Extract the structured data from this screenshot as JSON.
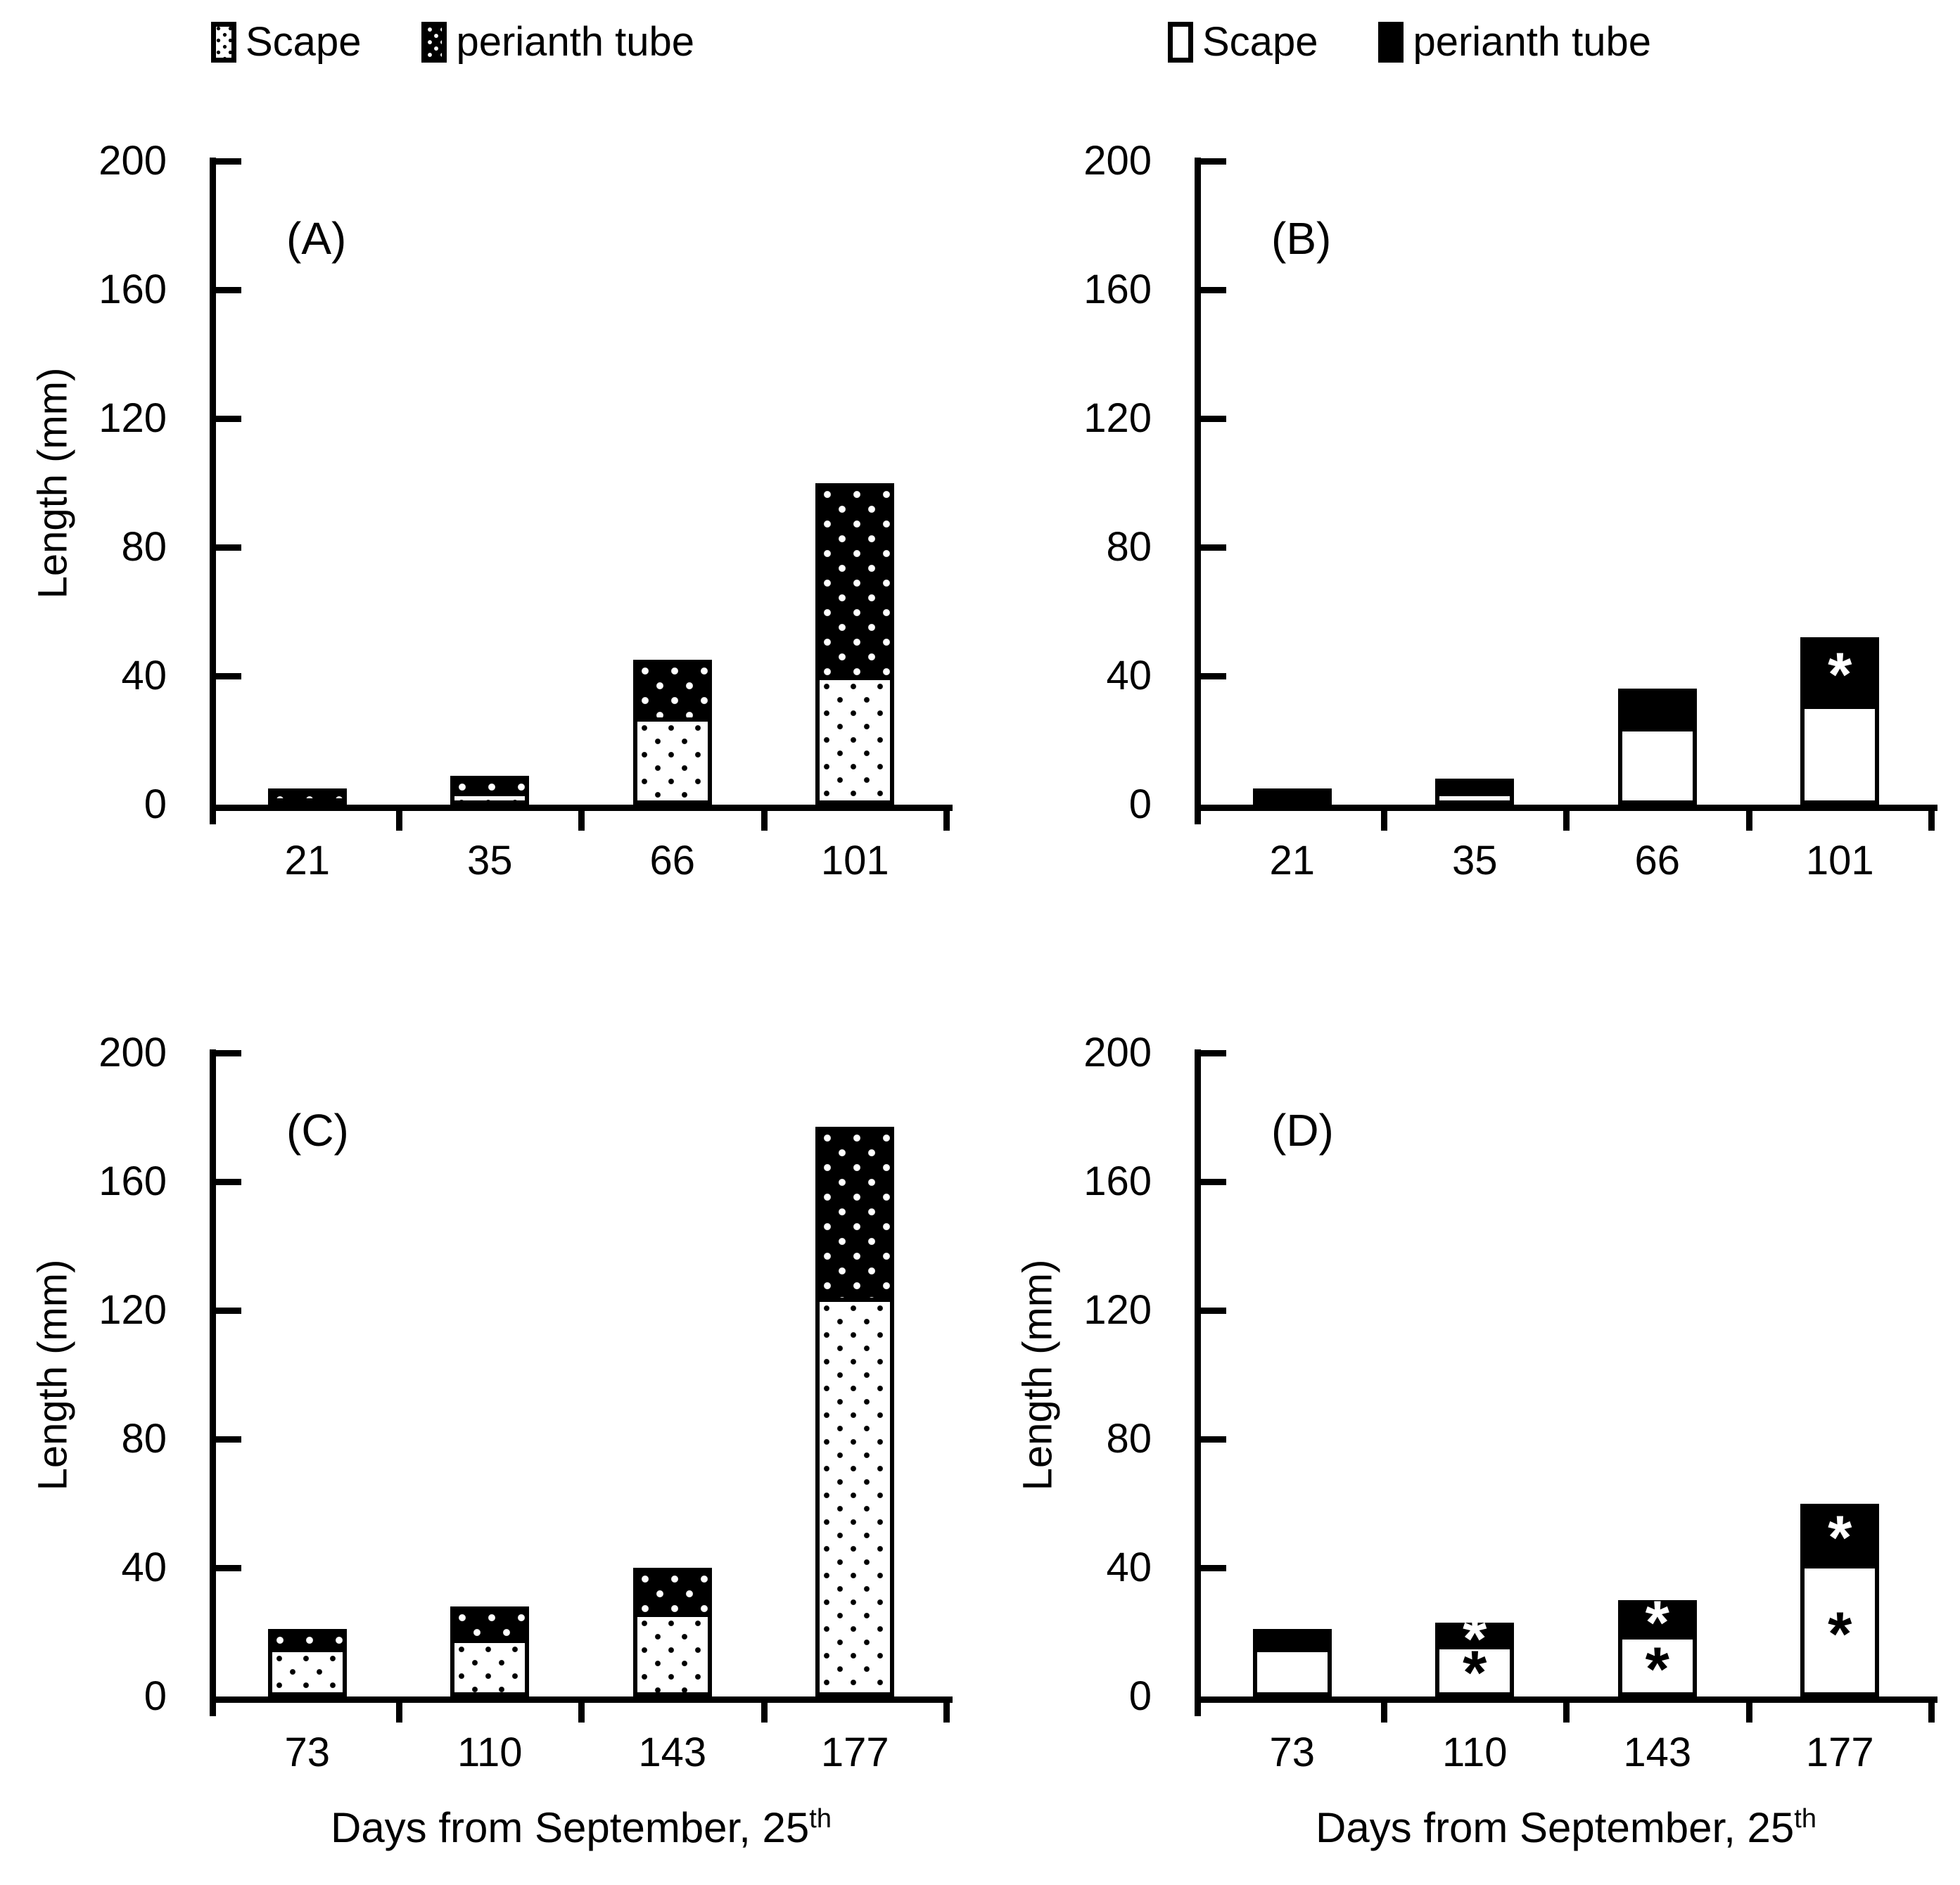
{
  "figure": {
    "background": "#ffffff",
    "ink": "#000000",
    "accent_white": "#ffffff"
  },
  "legends": {
    "left": {
      "items": [
        {
          "label": "Scape",
          "swatch": "dotted-white"
        },
        {
          "label": "perianth tube",
          "swatch": "dotted-black"
        }
      ]
    },
    "right": {
      "items": [
        {
          "label": "Scape",
          "swatch": "plain-white"
        },
        {
          "label": "perianth tube",
          "swatch": "plain-black"
        }
      ]
    }
  },
  "chart_data": [
    {
      "id": "A",
      "type": "bar",
      "stacked": true,
      "panel_label": "(A)",
      "style": "dotted",
      "categories": [
        "21",
        "35",
        "66",
        "101"
      ],
      "series": [
        {
          "name": "Scape",
          "values": [
            2,
            4,
            27,
            40
          ]
        },
        {
          "name": "perianth tube",
          "values": [
            3,
            5,
            18,
            60
          ]
        }
      ],
      "ylabel": "Length (mm)",
      "ylim": [
        0,
        200
      ],
      "yticks": [
        0,
        40,
        80,
        120,
        160,
        200
      ],
      "xlabel": null,
      "annotations": []
    },
    {
      "id": "B",
      "type": "bar",
      "stacked": true,
      "panel_label": "(B)",
      "style": "plain",
      "categories": [
        "21",
        "35",
        "66",
        "101"
      ],
      "series": [
        {
          "name": "Scape",
          "values": [
            2,
            4,
            24,
            31
          ]
        },
        {
          "name": "perianth tube",
          "values": [
            3,
            4,
            12,
            21
          ]
        }
      ],
      "ylabel": null,
      "ylim": [
        0,
        200
      ],
      "yticks": [
        0,
        40,
        80,
        120,
        160,
        200
      ],
      "xlabel": null,
      "annotations": [
        {
          "category": "101",
          "symbol": "*",
          "color": "#ffffff",
          "at_value": 42
        }
      ]
    },
    {
      "id": "C",
      "type": "bar",
      "stacked": true,
      "panel_label": "(C)",
      "style": "dotted",
      "categories": [
        "73",
        "110",
        "143",
        "177"
      ],
      "series": [
        {
          "name": "Scape",
          "values": [
            15,
            18,
            26,
            124
          ]
        },
        {
          "name": "perianth tube",
          "values": [
            6,
            10,
            14,
            53
          ]
        }
      ],
      "ylabel": "Length (mm)",
      "ylim": [
        0,
        200
      ],
      "yticks": [
        0,
        40,
        80,
        120,
        160,
        200
      ],
      "xlabel": {
        "text": "Days from September, 25",
        "sup": "th"
      },
      "annotations": []
    },
    {
      "id": "D",
      "type": "bar",
      "stacked": true,
      "panel_label": "(D)",
      "style": "plain",
      "categories": [
        "73",
        "110",
        "143",
        "177"
      ],
      "series": [
        {
          "name": "Scape",
          "values": [
            15,
            16,
            19,
            41
          ]
        },
        {
          "name": "perianth tube",
          "values": [
            6,
            7,
            11,
            19
          ]
        }
      ],
      "ylabel": "Length (mm)",
      "ylim": [
        0,
        200
      ],
      "yticks": [
        0,
        40,
        80,
        120,
        160,
        200
      ],
      "xlabel": {
        "text": "Days from September, 25",
        "sup": "th"
      },
      "annotations": [
        {
          "category": "110",
          "symbol": "*",
          "color": "#ffffff",
          "at_value": 19.5
        },
        {
          "category": "110",
          "symbol": "*",
          "color": "#000000",
          "at_value": 9
        },
        {
          "category": "143",
          "symbol": "*",
          "color": "#ffffff",
          "at_value": 24.5
        },
        {
          "category": "143",
          "symbol": "*",
          "color": "#000000",
          "at_value": 10
        },
        {
          "category": "177",
          "symbol": "*",
          "color": "#ffffff",
          "at_value": 51
        },
        {
          "category": "177",
          "symbol": "*",
          "color": "#000000",
          "at_value": 21
        }
      ]
    }
  ]
}
